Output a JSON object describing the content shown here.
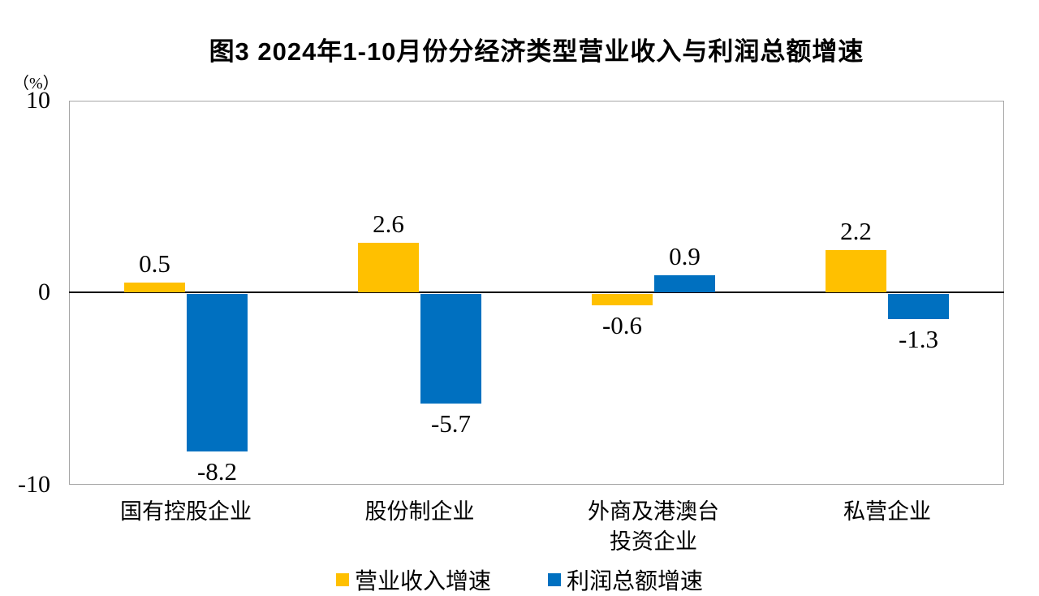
{
  "page": {
    "background": "#ffffff"
  },
  "chart_data": {
    "type": "bar",
    "title": "图3  2024年1-10月份分经济类型营业收入与利润总额增速",
    "unit_label": "（%）",
    "categories": [
      "国有控股企业",
      "股份制企业",
      "外商及港澳台\n投资企业",
      "私营企业"
    ],
    "series": [
      {
        "name": "营业收入增速",
        "color": "#FFC000",
        "values": [
          0.5,
          2.6,
          -0.6,
          2.2
        ],
        "labels": [
          "0.5",
          "2.6",
          "-0.6",
          "2.2"
        ]
      },
      {
        "name": "利润总额增速",
        "color": "#0070C0",
        "values": [
          -8.2,
          -5.7,
          0.9,
          -1.3
        ],
        "labels": [
          "-8.2",
          "-5.7",
          "0.9",
          "-1.3"
        ]
      }
    ],
    "yticks": [
      {
        "label": "10",
        "value": 10
      },
      {
        "label": "0",
        "value": 0
      },
      {
        "label": "-10",
        "value": -10
      }
    ],
    "ylim": [
      -10,
      10
    ],
    "grid": false,
    "legend_position": "bottom"
  }
}
